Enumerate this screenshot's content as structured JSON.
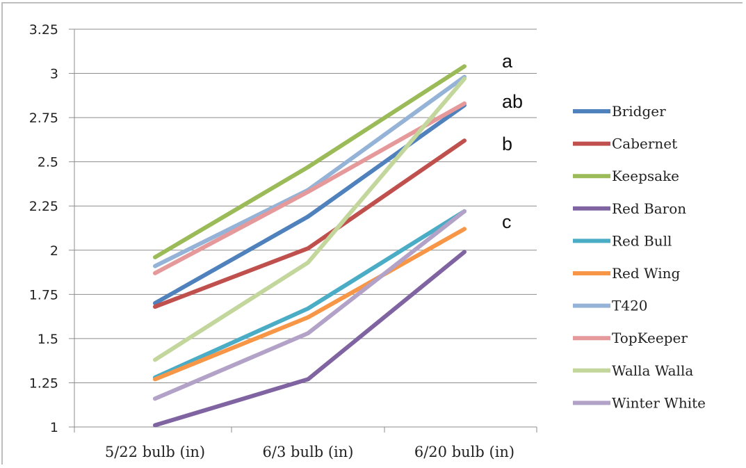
{
  "chart_data": {
    "type": "line",
    "categories": [
      "5/22 bulb (in)",
      "6/3 bulb (in)",
      "6/20 bulb (in)"
    ],
    "ylim": [
      1,
      3.25
    ],
    "yticks": [
      "1",
      "1.25",
      "1.5",
      "1.75",
      "2",
      "2.25",
      "2.5",
      "2.75",
      "3",
      "3.25"
    ],
    "grid": true,
    "legend_position": "right",
    "series": [
      {
        "name": "Bridger",
        "color": "#4f81bd",
        "values": [
          1.7,
          2.19,
          2.82
        ]
      },
      {
        "name": "Cabernet",
        "color": "#c0504d",
        "values": [
          1.68,
          2.01,
          2.62
        ]
      },
      {
        "name": "Keepsake",
        "color": "#9bbb59",
        "values": [
          1.96,
          2.47,
          3.04
        ]
      },
      {
        "name": "Red Baron",
        "color": "#8064a2",
        "values": [
          1.01,
          1.27,
          1.99
        ]
      },
      {
        "name": "Red Bull",
        "color": "#4bacc6",
        "values": [
          1.28,
          1.67,
          2.22
        ]
      },
      {
        "name": "Red Wing",
        "color": "#f79646",
        "values": [
          1.27,
          1.62,
          2.12
        ]
      },
      {
        "name": "T420",
        "color": "#95b3d7",
        "values": [
          1.91,
          2.34,
          2.98
        ]
      },
      {
        "name": "TopKeeper",
        "color": "#e6999a",
        "values": [
          1.87,
          2.33,
          2.83
        ]
      },
      {
        "name": "Walla Walla",
        "color": "#c3d69b",
        "values": [
          1.38,
          1.93,
          2.97
        ]
      },
      {
        "name": "Winter White",
        "color": "#b3a2c7",
        "values": [
          1.16,
          1.53,
          2.22
        ]
      }
    ],
    "annotations": [
      {
        "text": "a",
        "y": 3.07
      },
      {
        "text": "ab",
        "y": 2.84
      },
      {
        "text": "b",
        "y": 2.6
      },
      {
        "text": "c",
        "y": 2.16
      }
    ]
  }
}
